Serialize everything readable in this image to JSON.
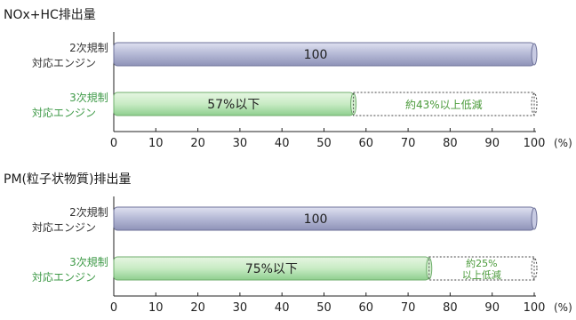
{
  "chart_data": [
    {
      "type": "bar",
      "orientation": "horizontal",
      "title": "NOx+HC排出量",
      "unit_label": "(%)",
      "xlim": [
        0,
        100
      ],
      "ticks": [
        0,
        10,
        20,
        30,
        40,
        50,
        60,
        70,
        80,
        90,
        100
      ],
      "categories": [
        {
          "line1": "2次規制",
          "line2": "対応エンジン"
        },
        {
          "line1": "3次規制",
          "line2": "対応エンジン"
        }
      ],
      "values": [
        100,
        57
      ],
      "data_labels": [
        "100",
        "57%以下"
      ],
      "reduction": {
        "value": 43,
        "lines": [
          "約43%以上低減"
        ]
      },
      "colors": {
        "series_2nd": "#b8bcd8",
        "series_3rd": "#8fcf8f",
        "label_3rd": "#3f9a48",
        "reduction_text": "#4a9a3a"
      }
    },
    {
      "type": "bar",
      "orientation": "horizontal",
      "title": "PM(粒子状物質)排出量",
      "unit_label": "(%)",
      "xlim": [
        0,
        100
      ],
      "ticks": [
        0,
        10,
        20,
        30,
        40,
        50,
        60,
        70,
        80,
        90,
        100
      ],
      "categories": [
        {
          "line1": "2次規制",
          "line2": "対応エンジン"
        },
        {
          "line1": "3次規制",
          "line2": "対応エンジン"
        }
      ],
      "values": [
        100,
        75
      ],
      "data_labels": [
        "100",
        "75%以下"
      ],
      "reduction": {
        "value": 25,
        "lines": [
          "約25%",
          "以上低減"
        ]
      },
      "colors": {
        "series_2nd": "#b8bcd8",
        "series_3rd": "#8fcf8f",
        "label_3rd": "#3f9a48",
        "reduction_text": "#4a9a3a"
      }
    }
  ]
}
